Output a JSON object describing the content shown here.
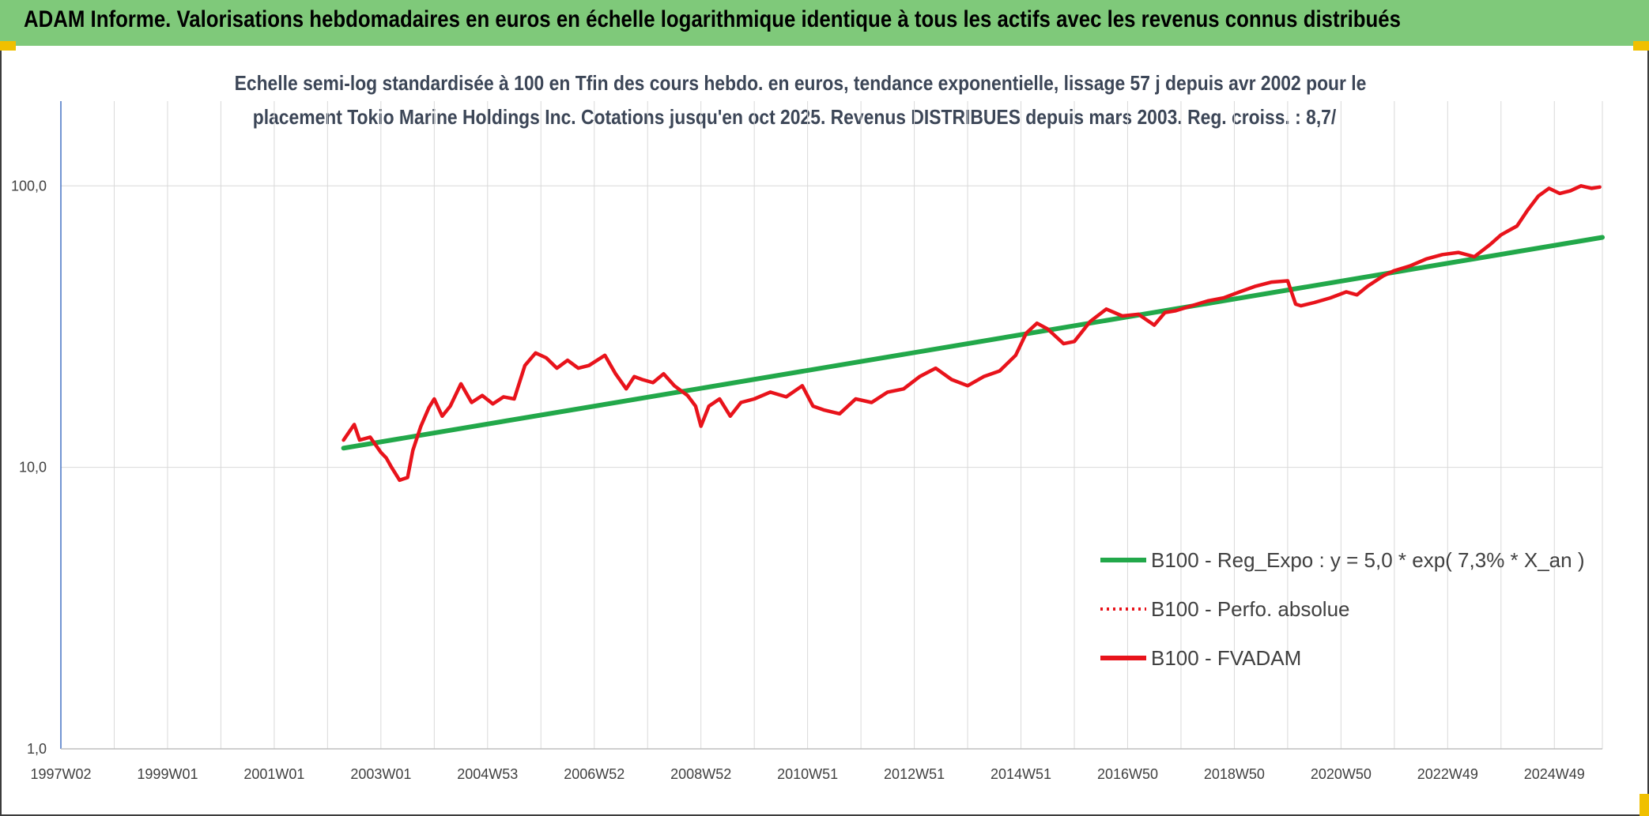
{
  "banner": {
    "title": "ADAM Informe. Valorisations hebdomadaires en euros en échelle logarithmique identique à tous les actifs avec les revenus connus distribués"
  },
  "chart_data": {
    "type": "line",
    "title_lines": [
      "Echelle semi-log standardisée à 100 en Tfin des cours hebdo. en euros, tendance exponentielle, lissage 57 j depuis avr 2002 pour le",
      "placement Tokio Marine Holdings Inc. Cotations jusqu'en oct 2025. Revenus DISTRIBUES depuis mars 2003. Reg. croiss. : 8,7/"
    ],
    "y_scale": "log",
    "ylim": [
      1,
      100
    ],
    "y_ticks": [
      1,
      10,
      100
    ],
    "y_tick_labels": [
      "1,0",
      "10,0",
      "100,0"
    ],
    "xlim": [
      1997.0,
      2025.9
    ],
    "x_ticks": [
      {
        "label": "1997W02",
        "x": 1997.0
      },
      {
        "label": "1999W01",
        "x": 1999.0
      },
      {
        "label": "2001W01",
        "x": 2001.0
      },
      {
        "label": "2003W01",
        "x": 2003.0
      },
      {
        "label": "2004W53",
        "x": 2005.0
      },
      {
        "label": "2006W52",
        "x": 2007.0
      },
      {
        "label": "2008W52",
        "x": 2009.0
      },
      {
        "label": "2010W51",
        "x": 2011.0
      },
      {
        "label": "2012W51",
        "x": 2013.0
      },
      {
        "label": "2014W51",
        "x": 2015.0
      },
      {
        "label": "2016W50",
        "x": 2017.0
      },
      {
        "label": "2018W50",
        "x": 2019.0
      },
      {
        "label": "2020W50",
        "x": 2021.0
      },
      {
        "label": "2022W49",
        "x": 2023.0
      },
      {
        "label": "2024W49",
        "x": 2025.0
      }
    ],
    "grid": "vertical and horizontal",
    "legend_position": "lower-right",
    "series": [
      {
        "name": "B100 - Reg_Expo : y = 5,0 * exp( 7,3% *  X_an )",
        "color": "#22a84a",
        "style": "solid",
        "x": [
          2002.3,
          2025.9
        ],
        "y": [
          11.7,
          65.6
        ]
      },
      {
        "name": "B100 - Perfo. absolue",
        "color": "#e8131b",
        "style": "dotted",
        "x": [],
        "y": []
      },
      {
        "name": "B100 - FVADAM",
        "color": "#e8131b",
        "style": "solid",
        "x": [
          2002.3,
          2002.5,
          2002.6,
          2002.8,
          2003.0,
          2003.1,
          2003.2,
          2003.35,
          2003.5,
          2003.6,
          2003.75,
          2003.9,
          2004.0,
          2004.15,
          2004.3,
          2004.5,
          2004.7,
          2004.9,
          2005.1,
          2005.3,
          2005.5,
          2005.7,
          2005.9,
          2006.1,
          2006.3,
          2006.5,
          2006.7,
          2006.9,
          2007.2,
          2007.4,
          2007.6,
          2007.75,
          2007.9,
          2008.1,
          2008.3,
          2008.5,
          2008.75,
          2008.9,
          2009.0,
          2009.15,
          2009.35,
          2009.55,
          2009.75,
          2010.0,
          2010.3,
          2010.6,
          2010.9,
          2011.1,
          2011.3,
          2011.6,
          2011.9,
          2012.2,
          2012.5,
          2012.8,
          2013.1,
          2013.4,
          2013.7,
          2014.0,
          2014.3,
          2014.6,
          2014.9,
          2015.1,
          2015.3,
          2015.5,
          2015.8,
          2016.0,
          2016.3,
          2016.6,
          2016.9,
          2017.2,
          2017.5,
          2017.7,
          2017.9,
          2018.2,
          2018.5,
          2018.8,
          2019.1,
          2019.4,
          2019.7,
          2020.0,
          2020.15,
          2020.25,
          2020.5,
          2020.8,
          2021.1,
          2021.3,
          2021.5,
          2021.8,
          2022.0,
          2022.3,
          2022.6,
          2022.9,
          2023.2,
          2023.5,
          2023.8,
          2024.0,
          2024.3,
          2024.5,
          2024.7,
          2024.9,
          2025.1,
          2025.3,
          2025.5,
          2025.7,
          2025.85
        ],
        "y": [
          12.5,
          14.2,
          12.5,
          12.8,
          11.3,
          10.8,
          10.0,
          9.0,
          9.2,
          11.5,
          14.0,
          16.3,
          17.5,
          15.2,
          16.5,
          19.8,
          17.0,
          18.0,
          16.8,
          17.8,
          17.5,
          23.0,
          25.5,
          24.5,
          22.5,
          24.0,
          22.5,
          23.0,
          25.0,
          21.5,
          19.0,
          21.0,
          20.5,
          20.0,
          21.5,
          19.5,
          18.0,
          16.5,
          14.0,
          16.5,
          17.5,
          15.2,
          17.0,
          17.5,
          18.5,
          17.8,
          19.5,
          16.5,
          16.0,
          15.5,
          17.5,
          17.0,
          18.5,
          19.0,
          21.0,
          22.5,
          20.5,
          19.5,
          21.0,
          22.0,
          25.0,
          30.0,
          32.5,
          31.0,
          27.5,
          28.0,
          33.0,
          36.5,
          34.5,
          35.0,
          32.0,
          35.5,
          36.0,
          37.5,
          39.0,
          40.0,
          42.0,
          44.0,
          45.5,
          46.0,
          38.0,
          37.5,
          38.5,
          40.0,
          42.0,
          41.0,
          44.0,
          48.0,
          50.0,
          52.0,
          55.0,
          57.0,
          58.0,
          56.0,
          62.0,
          67.0,
          72.0,
          82.0,
          92.0,
          98.0,
          94.0,
          96.0,
          100.0,
          98.0,
          99.0
        ]
      }
    ]
  }
}
